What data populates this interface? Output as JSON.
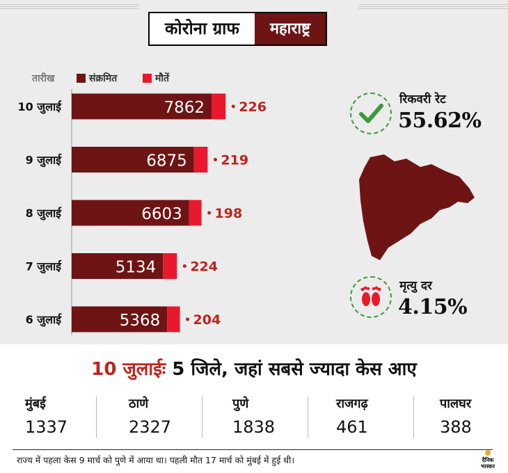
{
  "header": {
    "title": "कोरोना ग्राफ",
    "region": "महाराष्ट्र"
  },
  "legend": {
    "date_label": "तारीख",
    "infected_label": "संक्रमित",
    "deaths_label": "मौतें"
  },
  "colors": {
    "infected": "#6e1414",
    "deaths": "#e8192c",
    "deaths_text": "#c0221d",
    "accent_green": "#3c9a3c",
    "banner_bg": "#ececec"
  },
  "chart_data": {
    "type": "bar",
    "orientation": "horizontal",
    "stacked": true,
    "categories": [
      "10 जुलाई",
      "9 जुलाई",
      "8 जुलाई",
      "7 जुलाई",
      "6 जुलाई"
    ],
    "series": [
      {
        "name": "संक्रमित",
        "values": [
          7862,
          6875,
          6603,
          5134,
          5368
        ]
      },
      {
        "name": "मौतें",
        "values": [
          226,
          219,
          198,
          224,
          204
        ]
      }
    ],
    "legend_position": "top-left",
    "grid": false
  },
  "stats": {
    "recovery": {
      "label": "रिकवरी रेट",
      "value": "55.62%",
      "icon": "check-icon"
    },
    "mortality": {
      "label": "मृत्यु दर",
      "value": "4.15%",
      "icon": "footprints-icon"
    }
  },
  "districts": {
    "title_accent": "10 जुलाईः",
    "title_rest": " 5 जिले, जहां सबसे ज्यादा केस आए",
    "items": [
      {
        "name": "मुंबई",
        "value": "1337"
      },
      {
        "name": "ठाणे",
        "value": "2327"
      },
      {
        "name": "पुणे",
        "value": "1838"
      },
      {
        "name": "राजगढ़",
        "value": "461"
      },
      {
        "name": "पालघर",
        "value": "388"
      }
    ]
  },
  "footnote": "राज्य में पहला केस 9 मार्च को पुणे में आया था। पहली मौत 17 मार्च को मुंबई में हुई थी।",
  "brand": {
    "line1": "दैनिक",
    "line2": "भास्कर"
  }
}
